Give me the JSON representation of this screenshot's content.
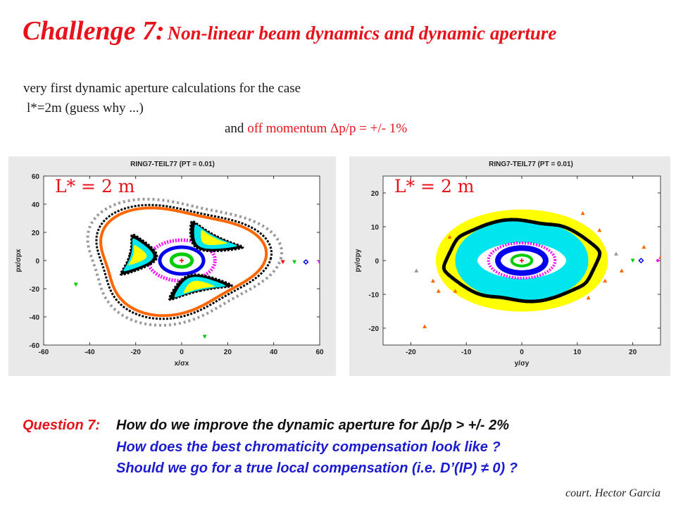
{
  "title": {
    "prefix": "Challenge 7:",
    "rest": "Non-linear beam dynamics and dynamic aperture"
  },
  "intro": {
    "line1": "very first dynamic aperture calculations for the case",
    "line2": "l*=2m (guess why ...)",
    "line3_prefix": "and",
    "line3_red": "off momentum Δp/p = +/- 1%"
  },
  "chart_data": [
    {
      "type": "scatter",
      "title": "RING7-TEIL77 (PT = 0.01)",
      "annotation": "L* = 2 m",
      "xlabel": "x/σx",
      "ylabel": "px/σpx",
      "xlim": [
        -60,
        60
      ],
      "ylim": [
        -60,
        60
      ],
      "xticks": [
        -60,
        -40,
        -20,
        0,
        20,
        40,
        60
      ],
      "yticks": [
        -60,
        -40,
        -20,
        0,
        20,
        40,
        60
      ],
      "colors": {
        "green": "#00cc00",
        "red": "#ff0000",
        "magenta": "#ff00ff",
        "blue": "#0000ee",
        "cyan": "#00e5ee",
        "yellow": "#ffff00",
        "black": "#000000",
        "orange": "#ff6600",
        "gray": "#999999"
      },
      "curves": [
        {
          "color": "green",
          "kind": "circle",
          "r": 4.5
        },
        {
          "color": "blue",
          "kind": "circle",
          "r": 9.5
        },
        {
          "color": "magenta",
          "kind": "circle",
          "r": 14.5
        },
        {
          "color": "black",
          "kind": "lobe",
          "angle": 50,
          "r": 20
        },
        {
          "color": "black",
          "kind": "lobe",
          "angle": 170,
          "r": 20
        },
        {
          "color": "black",
          "kind": "lobe",
          "angle": 290,
          "r": 20
        },
        {
          "color": "cyan",
          "kind": "lobe",
          "angle": 50,
          "r": 20
        },
        {
          "color": "cyan",
          "kind": "lobe",
          "angle": 170,
          "r": 20
        },
        {
          "color": "cyan",
          "kind": "lobe",
          "angle": 290,
          "r": 20
        },
        {
          "color": "yellow",
          "kind": "lobe",
          "angle": 50,
          "r": 20
        },
        {
          "color": "yellow",
          "kind": "lobe",
          "angle": 170,
          "r": 20
        },
        {
          "color": "yellow",
          "kind": "lobe",
          "angle": 290,
          "r": 20
        },
        {
          "color": "black",
          "kind": "triangle",
          "r": 37
        },
        {
          "color": "orange",
          "kind": "triangle",
          "r": 35
        },
        {
          "color": "gray",
          "kind": "triangle-dotted",
          "r": 41
        }
      ],
      "points": [
        {
          "x": 0,
          "y": 0,
          "color": "red",
          "marker": "plus"
        },
        {
          "x": -46,
          "y": -17,
          "color": "green",
          "marker": "tri-down"
        },
        {
          "x": 10,
          "y": -54,
          "color": "green",
          "marker": "tri-down"
        },
        {
          "x": 44,
          "y": -1,
          "color": "red",
          "marker": "tri-down"
        },
        {
          "x": 49,
          "y": -1,
          "color": "green",
          "marker": "tri-down"
        },
        {
          "x": 54,
          "y": -1,
          "color": "blue",
          "marker": "diamond"
        },
        {
          "x": 60,
          "y": -1,
          "color": "magenta",
          "marker": "dot"
        }
      ]
    },
    {
      "type": "scatter",
      "title": "RING7-TEIL77 (PT = 0.01)",
      "annotation": "L* = 2 m",
      "xlabel": "y/σy",
      "ylabel": "py/σpy",
      "xlim": [
        -25,
        25
      ],
      "ylim": [
        -25,
        25
      ],
      "xticks": [
        -20,
        -10,
        0,
        10,
        20
      ],
      "yticks": [
        -20,
        -10,
        0,
        10,
        20
      ],
      "colors": {
        "green": "#00cc00",
        "red": "#ff0000",
        "magenta": "#ff00ff",
        "blue": "#0000ee",
        "cyan": "#00e5ee",
        "yellow": "#ffff00",
        "black": "#000000",
        "orange": "#ff6600",
        "gray": "#999999"
      },
      "curves": [
        {
          "color": "yellow",
          "kind": "band",
          "rx": 13,
          "ry": 11,
          "width": 5
        },
        {
          "color": "cyan",
          "kind": "band",
          "rx": 10,
          "ry": 8.6,
          "width": 4
        },
        {
          "color": "magenta",
          "kind": "ellipse",
          "rx": 6,
          "ry": 5.2
        },
        {
          "color": "blue",
          "kind": "ellipse-thick",
          "rx": 4.3,
          "ry": 3.7
        },
        {
          "color": "green",
          "kind": "ellipse",
          "rx": 1.8,
          "ry": 1.6
        },
        {
          "color": "black",
          "kind": "ellipse-dotted",
          "rx": 13.8,
          "ry": 11.8
        }
      ],
      "points": [
        {
          "x": 0,
          "y": 0,
          "color": "red",
          "marker": "plus"
        },
        {
          "x": -17.5,
          "y": -19.5,
          "color": "orange",
          "marker": "tri"
        },
        {
          "x": -16,
          "y": -6,
          "color": "orange",
          "marker": "tri"
        },
        {
          "x": -15,
          "y": -9,
          "color": "orange",
          "marker": "tri"
        },
        {
          "x": -19,
          "y": -3,
          "color": "gray",
          "marker": "tri"
        },
        {
          "x": -13,
          "y": 7,
          "color": "orange",
          "marker": "tri"
        },
        {
          "x": -12,
          "y": -9,
          "color": "orange",
          "marker": "tri"
        },
        {
          "x": 11,
          "y": 14,
          "color": "orange",
          "marker": "tri"
        },
        {
          "x": 14,
          "y": 9,
          "color": "orange",
          "marker": "tri"
        },
        {
          "x": 15,
          "y": -6,
          "color": "orange",
          "marker": "tri"
        },
        {
          "x": 12,
          "y": -11,
          "color": "orange",
          "marker": "tri"
        },
        {
          "x": 18,
          "y": -3,
          "color": "orange",
          "marker": "tri"
        },
        {
          "x": 22,
          "y": 4,
          "color": "orange",
          "marker": "tri"
        },
        {
          "x": 25,
          "y": 1,
          "color": "orange",
          "marker": "tri"
        },
        {
          "x": 17,
          "y": 2,
          "color": "gray",
          "marker": "tri"
        },
        {
          "x": 20,
          "y": 0,
          "color": "green",
          "marker": "tri-down"
        },
        {
          "x": 21.5,
          "y": 0,
          "color": "blue",
          "marker": "diamond"
        },
        {
          "x": 24.5,
          "y": 0,
          "color": "magenta",
          "marker": "dot"
        }
      ]
    }
  ],
  "questions": {
    "label": "Question 7:",
    "lines": [
      "How do we improve the dynamic aperture for Δp/p  > +/- 2%",
      "How does the best chromaticity compensation look like ?",
      "Should we go for a true local compensation (i.e. D’(IP)  ≠ 0) ?"
    ]
  },
  "credit": "court. Hector Garcia"
}
